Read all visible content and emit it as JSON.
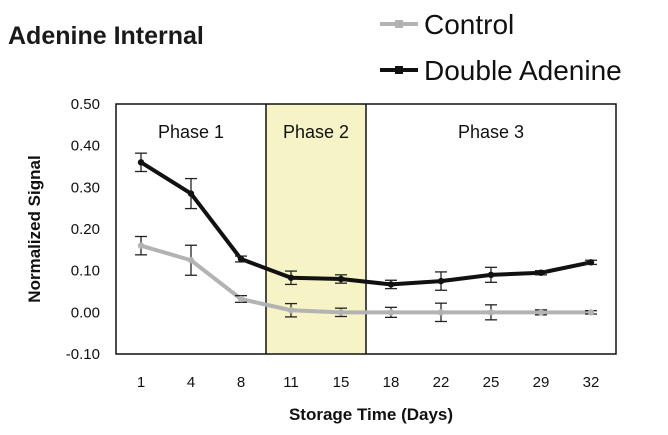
{
  "chart_data": {
    "type": "line",
    "title": "Adenine Internal",
    "xlabel": "Storage Time (Days)",
    "ylabel": "Normalized Signal",
    "categories": [
      "1",
      "4",
      "8",
      "11",
      "15",
      "18",
      "22",
      "25",
      "29",
      "32"
    ],
    "ylim": [
      -0.1,
      0.5
    ],
    "yticks": [
      "0.50",
      "0.40",
      "0.30",
      "0.20",
      "0.10",
      "0.00",
      "-0.10"
    ],
    "legend_position": "top-right",
    "phases": [
      {
        "label": "Phase 1",
        "from": "1",
        "to": "11",
        "highlight": false
      },
      {
        "label": "Phase 2",
        "from": "11",
        "to": "18",
        "highlight": true,
        "color": "#f6f3c6"
      },
      {
        "label": "Phase 3",
        "from": "18",
        "to": "32",
        "highlight": false
      }
    ],
    "series": [
      {
        "name": "Control",
        "color": "#b3b3b3",
        "values": [
          0.16,
          0.125,
          0.032,
          0.005,
          0.0,
          0.0,
          0.0,
          0.0,
          0.0,
          0.0
        ],
        "errors": [
          0.022,
          0.036,
          0.008,
          0.016,
          0.01,
          0.012,
          0.022,
          0.018,
          0.006,
          0.004
        ]
      },
      {
        "name": "Double Adenine",
        "color": "#111111",
        "values": [
          0.36,
          0.285,
          0.128,
          0.083,
          0.08,
          0.067,
          0.075,
          0.09,
          0.095,
          0.12
        ],
        "errors": [
          0.022,
          0.036,
          0.007,
          0.016,
          0.01,
          0.01,
          0.022,
          0.018,
          0.005,
          0.005
        ]
      }
    ]
  }
}
